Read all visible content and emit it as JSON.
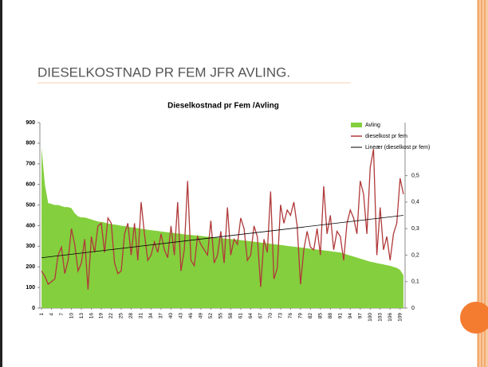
{
  "title": "DIESELKOSTNAD PR FEM JFR AVLING.",
  "chart_data": {
    "type": "combo",
    "title": "Dieselkostnad pr Fem /Avling",
    "categories": [
      "1",
      null,
      null,
      "4",
      null,
      null,
      "7",
      null,
      null,
      "10",
      null,
      null,
      "13",
      null,
      null,
      "16",
      null,
      null,
      "19",
      null,
      null,
      "22",
      null,
      null,
      "25",
      null,
      null,
      "28",
      null,
      null,
      "31",
      null,
      null,
      "34",
      null,
      null,
      "37",
      null,
      null,
      "40",
      null,
      null,
      "43",
      null,
      null,
      "46",
      null,
      null,
      "49",
      null,
      null,
      "52",
      null,
      null,
      "55",
      null,
      null,
      "58",
      null,
      null,
      "61",
      null,
      null,
      "64",
      null,
      null,
      "67",
      null,
      null,
      "70",
      null,
      null,
      "73",
      null,
      null,
      "76",
      null,
      null,
      "79",
      null,
      null,
      "82",
      null,
      null,
      "85",
      null,
      null,
      "88",
      null,
      null,
      "91",
      null,
      null,
      "94",
      null,
      null,
      "97",
      null,
      null,
      "100",
      null,
      null,
      "103",
      null,
      null,
      "106",
      null,
      null,
      "109",
      null
    ],
    "series": [
      {
        "name": "Avling",
        "type": "area",
        "color": "#84cf3d",
        "values": [
          780,
          600,
          510,
          505,
          500,
          500,
          495,
          490,
          490,
          485,
          460,
          445,
          440,
          440,
          435,
          430,
          425,
          420,
          418,
          415,
          410,
          408,
          405,
          403,
          400,
          398,
          395,
          392,
          390,
          388,
          385,
          383,
          380,
          378,
          376,
          374,
          372,
          370,
          368,
          366,
          364,
          362,
          360,
          358,
          356,
          355,
          353,
          352,
          350,
          348,
          346,
          345,
          343,
          342,
          340,
          338,
          336,
          335,
          333,
          332,
          330,
          328,
          326,
          324,
          322,
          320,
          318,
          316,
          314,
          312,
          310,
          308,
          306,
          304,
          302,
          300,
          298,
          296,
          294,
          292,
          290,
          288,
          286,
          284,
          282,
          280,
          278,
          276,
          274,
          272,
          270,
          265,
          260,
          255,
          250,
          245,
          240,
          235,
          230,
          225,
          222,
          218,
          215,
          212,
          208,
          205,
          200,
          195,
          185,
          160
        ]
      },
      {
        "name": "dieselkost pr fem",
        "type": "line",
        "axis": "y2",
        "color": "#b0393a",
        "values": [
          0.14,
          0.12,
          0.09,
          0.1,
          0.11,
          0.2,
          0.23,
          0.13,
          0.18,
          0.3,
          0.24,
          0.14,
          0.17,
          0.26,
          0.07,
          0.27,
          0.21,
          0.31,
          0.32,
          0.21,
          0.34,
          0.32,
          0.17,
          0.13,
          0.14,
          0.28,
          0.32,
          0.2,
          0.32,
          0.18,
          0.4,
          0.28,
          0.18,
          0.2,
          0.25,
          0.21,
          0.28,
          0.22,
          0.19,
          0.31,
          0.2,
          0.4,
          0.14,
          0.22,
          0.48,
          0.18,
          0.16,
          0.27,
          0.24,
          0.22,
          0.2,
          0.33,
          0.17,
          0.2,
          0.29,
          0.17,
          0.38,
          0.2,
          0.26,
          0.24,
          0.34,
          0.3,
          0.18,
          0.2,
          0.31,
          0.27,
          0.08,
          0.26,
          0.21,
          0.44,
          0.11,
          0.15,
          0.39,
          0.32,
          0.37,
          0.35,
          0.4,
          0.31,
          0.09,
          0.22,
          0.29,
          0.23,
          0.22,
          0.3,
          0.2,
          0.46,
          0.28,
          0.35,
          0.22,
          0.29,
          0.27,
          0.18,
          0.32,
          0.37,
          0.34,
          0.28,
          0.48,
          0.43,
          0.28,
          0.53,
          0.6,
          0.2,
          0.38,
          0.22,
          0.27,
          0.18,
          0.28,
          0.32,
          0.49,
          0.43
        ]
      }
    ],
    "trendline": {
      "name": "Lineær (dieselkost pr fem)",
      "color": "#000000",
      "x": [
        1,
        110
      ],
      "values": [
        0.19,
        0.35
      ]
    },
    "ylim": [
      0,
      900
    ],
    "yticks": [
      0,
      100,
      200,
      300,
      400,
      500,
      600,
      700,
      800,
      900
    ],
    "y2lim": [
      0,
      0.7
    ],
    "y2ticks": [
      0,
      {
        "value": 0.1,
        "label": "0,1"
      },
      {
        "value": 0.2,
        "label": "0,2"
      },
      {
        "value": 0.3,
        "label": "0,3"
      },
      {
        "value": 0.4,
        "label": "0,4"
      },
      {
        "value": 0.5,
        "label": "0,5"
      }
    ],
    "legend": "top-right"
  }
}
